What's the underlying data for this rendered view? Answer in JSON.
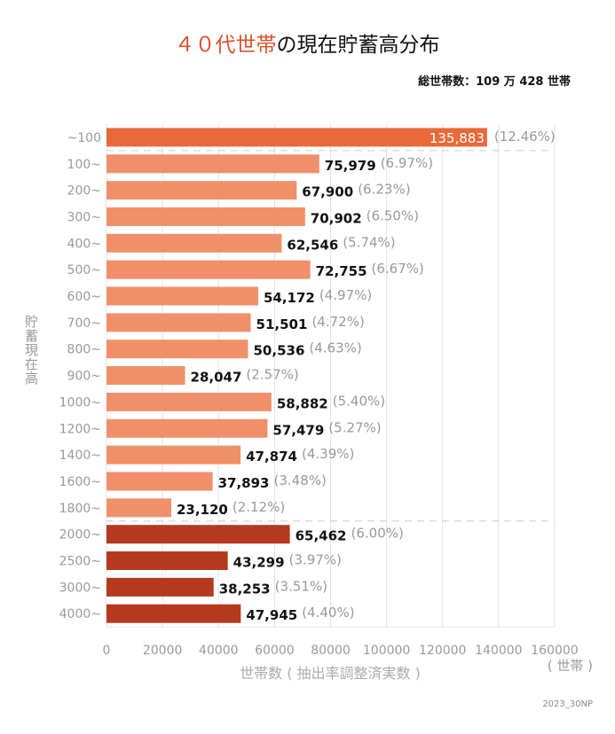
{
  "chart_data": {
    "type": "bar",
    "orientation": "horizontal",
    "title_highlight": "４０代世帯",
    "title_rest": "の現在貯蓄高分布",
    "subtitle": "総世帯数：109 万 428 世帯",
    "ylabel": "貯蓄現在高",
    "xlabel": "世帯数 ( 抽出率調整済実数 )",
    "xunit": "( 世帯 )",
    "footer": "2023_30NP",
    "xlim": [
      0,
      160000
    ],
    "xticks": [
      0,
      20000,
      40000,
      60000,
      80000,
      100000,
      120000,
      140000,
      160000
    ],
    "grid": true,
    "categories": [
      "~100",
      "100~",
      "200~",
      "300~",
      "400~",
      "500~",
      "600~",
      "700~",
      "800~",
      "900~",
      "1000~",
      "1200~",
      "1400~",
      "1600~",
      "1800~",
      "2000~",
      "2500~",
      "3000~",
      "4000~"
    ],
    "values": [
      135883,
      75979,
      67900,
      70902,
      62546,
      72755,
      54172,
      51501,
      50536,
      28047,
      58882,
      57479,
      47874,
      37893,
      23120,
      65462,
      43299,
      38253,
      47945
    ],
    "value_labels": [
      "135,883",
      "75,979",
      "67,900",
      "70,902",
      "62,546",
      "72,755",
      "54,172",
      "51,501",
      "50,536",
      "28,047",
      "58,882",
      "57,479",
      "47,874",
      "37,893",
      "23,120",
      "65,462",
      "43,299",
      "38,253",
      "47,945"
    ],
    "percent_labels": [
      "(12.46%)",
      "(6.97%)",
      "(6.23%)",
      "(6.50%)",
      "(5.74%)",
      "(6.67%)",
      "(4.97%)",
      "(4.72%)",
      "(4.63%)",
      "(2.57%)",
      "(5.40%)",
      "(5.27%)",
      "(4.39%)",
      "(3.48%)",
      "(2.12%)",
      "(6.00%)",
      "(3.97%)",
      "(3.51%)",
      "(4.40%)"
    ],
    "groups": [
      0,
      1,
      1,
      1,
      1,
      1,
      1,
      1,
      1,
      1,
      1,
      1,
      1,
      1,
      1,
      2,
      2,
      2,
      2
    ],
    "colors": {
      "group0": "#e8693a",
      "group1": "#f0906a",
      "group2": "#b5391f",
      "title_accent": "#d9502a",
      "muted": "#999999",
      "grid": "#e3e3e3"
    }
  }
}
